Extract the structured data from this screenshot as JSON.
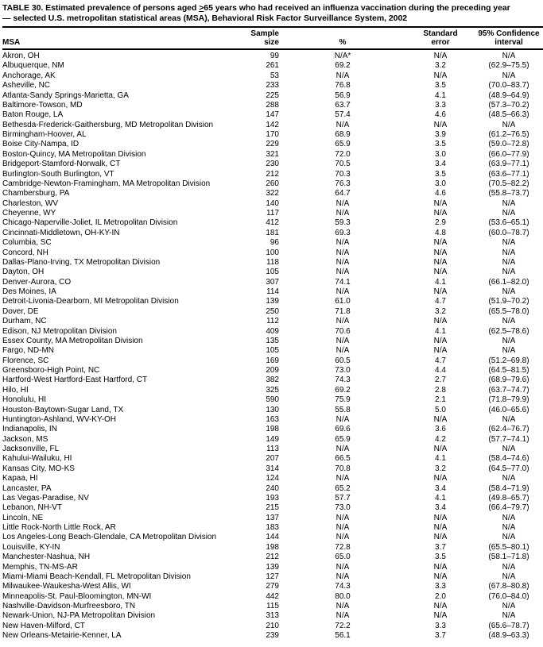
{
  "page": {
    "background_color": "#ffffff",
    "text_color": "#000000"
  },
  "title": {
    "line1_before": "TABLE 30. Estimated prevalence of persons aged ",
    "gte_symbol": ">",
    "line1_after": "65 years who had received an influenza vaccination during the preceding year",
    "line2": "— selected U.S. metropolitan statistical areas (MSA), Behavioral Risk Factor Surveillance System, 2002"
  },
  "table": {
    "columns": [
      {
        "label": "MSA",
        "align": "left"
      },
      {
        "label": "Sample\nsize",
        "align": "right"
      },
      {
        "label": "%",
        "align": "center"
      },
      {
        "label": "Standard\nerror",
        "align": "center"
      },
      {
        "label": "95% Confidence\ninterval",
        "align": "center"
      }
    ],
    "rows": [
      [
        "Akron, OH",
        "99",
        "N/A*",
        "N/A",
        "N/A"
      ],
      [
        "Albuquerque, NM",
        "261",
        "69.2",
        "3.2",
        "(62.9–75.5)"
      ],
      [
        "Anchorage, AK",
        "53",
        "N/A",
        "N/A",
        "N/A"
      ],
      [
        "Asheville, NC",
        "233",
        "76.8",
        "3.5",
        "(70.0–83.7)"
      ],
      [
        "Atlanta-Sandy Springs-Marietta, GA",
        "225",
        "56.9",
        "4.1",
        "(48.9–64.9)"
      ],
      [
        "Baltimore-Towson, MD",
        "288",
        "63.7",
        "3.3",
        "(57.3–70.2)"
      ],
      [
        "Baton Rouge, LA",
        "147",
        "57.4",
        "4.6",
        "(48.5–66.3)"
      ],
      [
        "Bethesda-Frederick-Gaithersburg, MD Metropolitan Division",
        "142",
        "N/A",
        "N/A",
        "N/A"
      ],
      [
        "Birmingham-Hoover, AL",
        "170",
        "68.9",
        "3.9",
        "(61.2–76.5)"
      ],
      [
        "Boise City-Nampa, ID",
        "229",
        "65.9",
        "3.5",
        "(59.0–72.8)"
      ],
      [
        "Boston-Quincy, MA Metropolitan Division",
        "321",
        "72.0",
        "3.0",
        "(66.0–77.9)"
      ],
      [
        "Bridgeport-Stamford-Norwalk, CT",
        "230",
        "70.5",
        "3.4",
        "(63.9–77.1)"
      ],
      [
        "Burlington-South Burlington, VT",
        "212",
        "70.3",
        "3.5",
        "(63.6–77.1)"
      ],
      [
        "Cambridge-Newton-Framingham, MA Metropolitan Division",
        "260",
        "76.3",
        "3.0",
        "(70.5–82.2)"
      ],
      [
        "Chambersburg, PA",
        "322",
        "64.7",
        "4.6",
        "(55.8–73.7)"
      ],
      [
        "Charleston, WV",
        "140",
        "N/A",
        "N/A",
        "N/A"
      ],
      [
        "Cheyenne, WY",
        "117",
        "N/A",
        "N/A",
        "N/A"
      ],
      [
        "Chicago-Naperville-Joliet, IL Metropolitan Division",
        "412",
        "59.3",
        "2.9",
        "(53.6–65.1)"
      ],
      [
        "Cincinnati-Middletown, OH-KY-IN",
        "181",
        "69.3",
        "4.8",
        "(60.0–78.7)"
      ],
      [
        "Columbia, SC",
        "96",
        "N/A",
        "N/A",
        "N/A"
      ],
      [
        "Concord, NH",
        "100",
        "N/A",
        "N/A",
        "N/A"
      ],
      [
        "Dallas-Plano-Irving, TX Metropolitan Division",
        "118",
        "N/A",
        "N/A",
        "N/A"
      ],
      [
        "Dayton, OH",
        "105",
        "N/A",
        "N/A",
        "N/A"
      ],
      [
        "Denver-Aurora, CO",
        "307",
        "74.1",
        "4.1",
        "(66.1–82.0)"
      ],
      [
        "Des Moines, IA",
        "114",
        "N/A",
        "N/A",
        "N/A"
      ],
      [
        "Detroit-Livonia-Dearborn, MI Metropolitan Division",
        "139",
        "61.0",
        "4.7",
        "(51.9–70.2)"
      ],
      [
        "Dover, DE",
        "250",
        "71.8",
        "3.2",
        "(65.5–78.0)"
      ],
      [
        "Durham, NC",
        "112",
        "N/A",
        "N/A",
        "N/A"
      ],
      [
        "Edison, NJ Metropolitan Division",
        "409",
        "70.6",
        "4.1",
        "(62.5–78.6)"
      ],
      [
        "Essex County, MA Metropolitan Division",
        "135",
        "N/A",
        "N/A",
        "N/A"
      ],
      [
        "Fargo, ND-MN",
        "105",
        "N/A",
        "N/A",
        "N/A"
      ],
      [
        "Florence, SC",
        "169",
        "60.5",
        "4.7",
        "(51.2–69.8)"
      ],
      [
        "Greensboro-High Point, NC",
        "209",
        "73.0",
        "4.4",
        "(64.5–81.5)"
      ],
      [
        "Hartford-West Hartford-East Hartford, CT",
        "382",
        "74.3",
        "2.7",
        "(68.9–79.6)"
      ],
      [
        "Hilo, HI",
        "325",
        "69.2",
        "2.8",
        "(63.7–74.7)"
      ],
      [
        "Honolulu, HI",
        "590",
        "75.9",
        "2.1",
        "(71.8–79.9)"
      ],
      [
        "Houston-Baytown-Sugar Land, TX",
        "130",
        "55.8",
        "5.0",
        "(46.0–65.6)"
      ],
      [
        "Huntington-Ashland, WV-KY-OH",
        "163",
        "N/A",
        "N/A",
        "N/A"
      ],
      [
        "Indianapolis, IN",
        "198",
        "69.6",
        "3.6",
        "(62.4–76.7)"
      ],
      [
        "Jackson, MS",
        "149",
        "65.9",
        "4.2",
        "(57.7–74.1)"
      ],
      [
        "Jacksonville, FL",
        "113",
        "N/A",
        "N/A",
        "N/A"
      ],
      [
        "Kahului-Wailuku, HI",
        "207",
        "66.5",
        "4.1",
        "(58.4–74.6)"
      ],
      [
        "Kansas City, MO-KS",
        "314",
        "70.8",
        "3.2",
        "(64.5–77.0)"
      ],
      [
        "Kapaa, HI",
        "124",
        "N/A",
        "N/A",
        "N/A"
      ],
      [
        "Lancaster, PA",
        "240",
        "65.2",
        "3.4",
        "(58.4–71.9)"
      ],
      [
        "Las Vegas-Paradise, NV",
        "193",
        "57.7",
        "4.1",
        "(49.8–65.7)"
      ],
      [
        "Lebanon, NH-VT",
        "215",
        "73.0",
        "3.4",
        "(66.4–79.7)"
      ],
      [
        "Lincoln, NE",
        "137",
        "N/A",
        "N/A",
        "N/A"
      ],
      [
        "Little Rock-North Little Rock, AR",
        "183",
        "N/A",
        "N/A",
        "N/A"
      ],
      [
        "Los Angeles-Long Beach-Glendale, CA Metropolitan Division",
        "144",
        "N/A",
        "N/A",
        "N/A"
      ],
      [
        "Louisville, KY-IN",
        "198",
        "72.8",
        "3.7",
        "(65.5–80.1)"
      ],
      [
        "Manchester-Nashua, NH",
        "212",
        "65.0",
        "3.5",
        "(58.1–71.8)"
      ],
      [
        "Memphis, TN-MS-AR",
        "139",
        "N/A",
        "N/A",
        "N/A"
      ],
      [
        "Miami-Miami Beach-Kendall, FL Metropolitan Division",
        "127",
        "N/A",
        "N/A",
        "N/A"
      ],
      [
        "Milwaukee-Waukesha-West Allis, WI",
        "279",
        "74.3",
        "3.3",
        "(67.8–80.8)"
      ],
      [
        "Minneapolis-St. Paul-Bloomington, MN-WI",
        "442",
        "80.0",
        "2.0",
        "(76.0–84.0)"
      ],
      [
        "Nashville-Davidson-Murfreesboro, TN",
        "115",
        "N/A",
        "N/A",
        "N/A"
      ],
      [
        "Newark-Union, NJ-PA Metropolitan Division",
        "313",
        "N/A",
        "N/A",
        "N/A"
      ],
      [
        "New Haven-Milford, CT",
        "210",
        "72.2",
        "3.3",
        "(65.6–78.7)"
      ],
      [
        "New Orleans-Metairie-Kenner, LA",
        "239",
        "56.1",
        "3.7",
        "(48.9–63.3)"
      ]
    ]
  }
}
